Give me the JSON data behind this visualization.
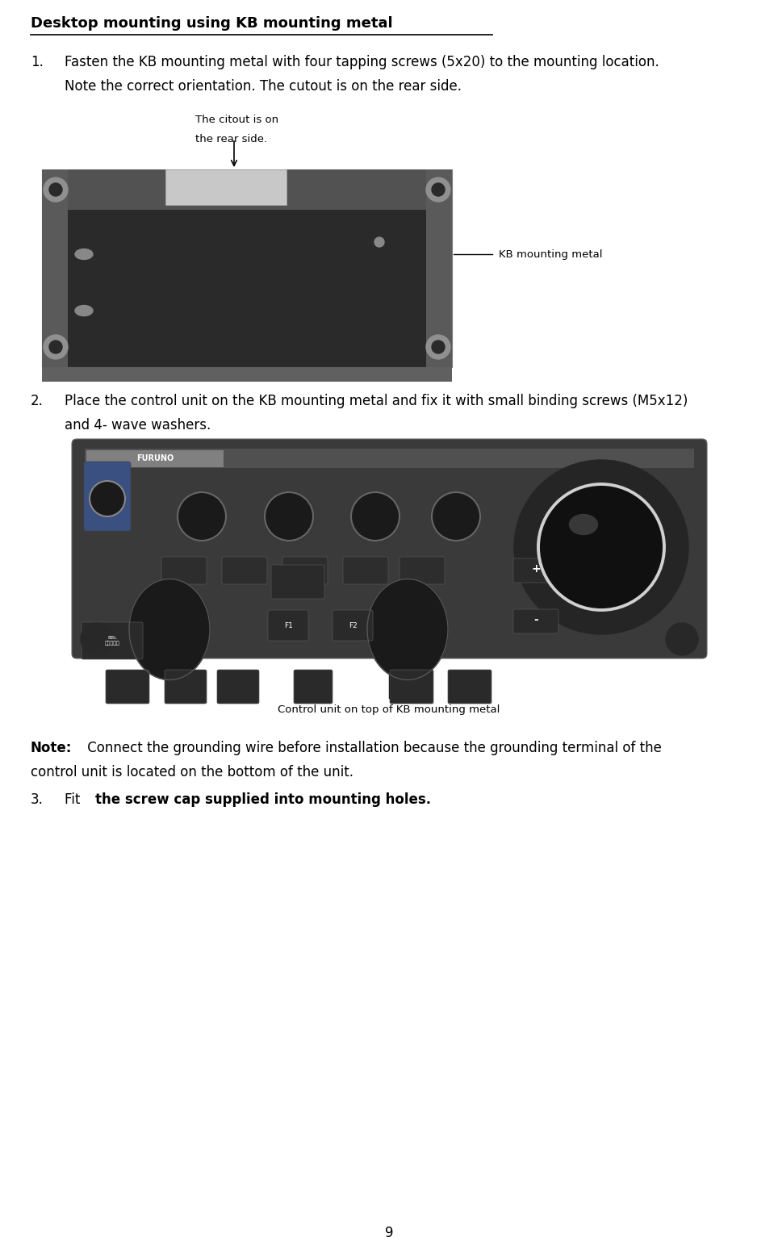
{
  "bg_color": "#ffffff",
  "title": "Desktop mounting using KB mounting metal",
  "step1_num": "1.",
  "step1_line1": "Fasten the KB mounting metal with four tapping screws (5x20) to the mounting location.",
  "step1_line2": "Note the correct orientation. The cutout is on the rear side.",
  "step2_num": "2.",
  "step2_line1": "Place the control unit on the KB mounting metal and fix it with small binding screws (M5x12)",
  "step2_line2": "and 4- wave washers.",
  "step3_num": "3.",
  "step3_part1": "Fit  ",
  "step3_part2": "the screw cap supplied into mounting holes.",
  "callout1_line1": "The citout is on",
  "callout1_line2": "the rear side.",
  "callout2": "KB mounting metal",
  "callout3": "Control unit on top of KB mounting metal",
  "note_bold": "Note:",
  "note_rest_line1": " Connect the grounding wire before installation because the grounding terminal of the",
  "note_rest_line2": "control unit is located on the bottom of the unit.",
  "page_number": "9",
  "text_color": "#000000",
  "font_size_title": 13,
  "font_size_body": 12,
  "font_size_callout": 9.5
}
